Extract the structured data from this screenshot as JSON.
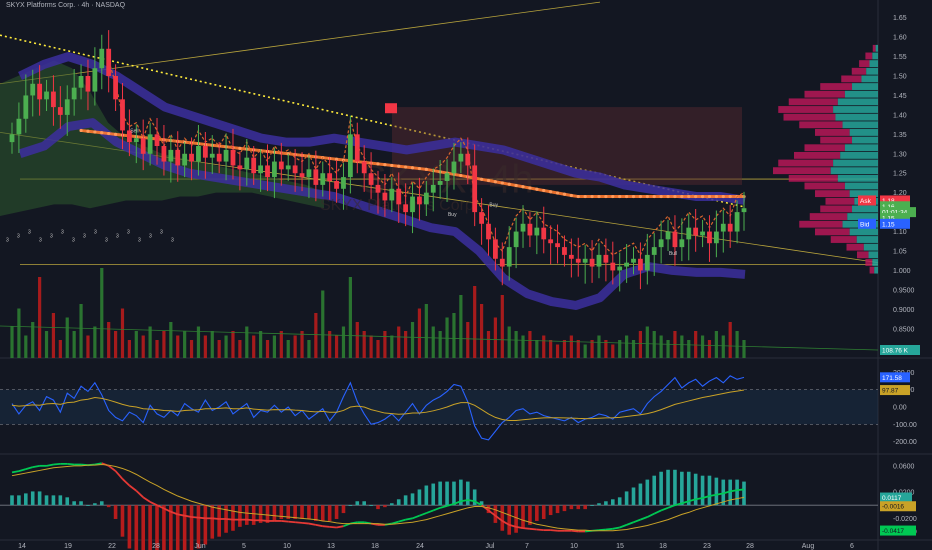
{
  "header": {
    "title": "SKYX Platforms Corp. · 4h · NASDAQ"
  },
  "watermark": {
    "ticker": "SKYX, 4h",
    "name": "SKYX Platforms Corp."
  },
  "colors": {
    "bg": "#131722",
    "up": "#26a69a",
    "up_candle": "#4caf50",
    "down": "#f23645",
    "ema_orange": "#ff7a2f",
    "cloud_blue": "#3c2f9e",
    "dotted": "#ffeb3b"
  },
  "markers": [
    "Sell",
    "Buy",
    "Buy",
    "Bull"
  ],
  "chart_data": [
    {
      "type": "candlestick",
      "panel": "price",
      "x_tick_labels": [
        "14",
        "19",
        "22",
        "28",
        "Jun",
        "5",
        "10",
        "13",
        "18",
        "24",
        "Jul",
        "7",
        "10",
        "15",
        "18",
        "23",
        "28",
        "Aug",
        "6"
      ],
      "y_tick_labels": [
        "1.65",
        "1.60",
        "1.55",
        "1.50",
        "1.45",
        "1.40",
        "1.35",
        "1.30",
        "1.25",
        "1.20",
        "1.15",
        "1.10",
        "1.05",
        "1.000",
        "0.9500",
        "0.9000",
        "0.8500",
        "0.8000"
      ],
      "ylim": [
        0.78,
        1.68
      ],
      "close": [
        1.35,
        1.39,
        1.45,
        1.48,
        1.44,
        1.46,
        1.42,
        1.4,
        1.44,
        1.47,
        1.5,
        1.46,
        1.52,
        1.57,
        1.5,
        1.44,
        1.36,
        1.33,
        1.34,
        1.3,
        1.35,
        1.32,
        1.28,
        1.31,
        1.27,
        1.3,
        1.28,
        1.32,
        1.29,
        1.3,
        1.28,
        1.31,
        1.27,
        1.26,
        1.29,
        1.25,
        1.27,
        1.24,
        1.28,
        1.26,
        1.27,
        1.25,
        1.24,
        1.26,
        1.22,
        1.25,
        1.23,
        1.21,
        1.24,
        1.35,
        1.28,
        1.25,
        1.22,
        1.2,
        1.18,
        1.21,
        1.17,
        1.15,
        1.19,
        1.17,
        1.2,
        1.22,
        1.23,
        1.25,
        1.28,
        1.3,
        1.27,
        1.15,
        1.12,
        1.08,
        1.03,
        1.01,
        1.06,
        1.1,
        1.12,
        1.09,
        1.11,
        1.08,
        1.07,
        1.06,
        1.04,
        1.03,
        1.02,
        1.03,
        1.01,
        1.04,
        1.02,
        1.0,
        1.01,
        1.02,
        1.03,
        1.0,
        1.04,
        1.06,
        1.08,
        1.1,
        1.06,
        1.08,
        1.11,
        1.09,
        1.1,
        1.07,
        1.1,
        1.12,
        1.1,
        1.15,
        1.16
      ],
      "price_labels": {
        "ask_label": "Ask",
        "ask": "1.18",
        "last": "1.16",
        "countdown": "01:01:34",
        "last2": "1.15",
        "bid_label": "Bid",
        "bid": "1.15"
      },
      "signal_digits": [
        "3",
        "3",
        "3",
        "3",
        "3",
        "3",
        "3",
        "3",
        "3",
        "3",
        "3",
        "3",
        "3",
        "3",
        "3",
        "3"
      ]
    },
    {
      "type": "bar",
      "panel": "volume",
      "volume_label": "108.76 K",
      "values": [
        0.35,
        0.55,
        0.25,
        0.4,
        0.9,
        0.3,
        0.5,
        0.2,
        0.45,
        0.3,
        0.6,
        0.25,
        0.35,
        1.0,
        0.4,
        0.3,
        0.55,
        0.2,
        0.3,
        0.25,
        0.35,
        0.2,
        0.3,
        0.4,
        0.25,
        0.3,
        0.2,
        0.35,
        0.25,
        0.3,
        0.2,
        0.25,
        0.3,
        0.2,
        0.35,
        0.25,
        0.3,
        0.2,
        0.25,
        0.3,
        0.2,
        0.25,
        0.3,
        0.2,
        0.5,
        0.75,
        0.3,
        0.25,
        0.35,
        0.9,
        0.4,
        0.3,
        0.25,
        0.2,
        0.3,
        0.25,
        0.35,
        0.3,
        0.4,
        0.55,
        0.6,
        0.35,
        0.3,
        0.45,
        0.5,
        0.7,
        0.4,
        0.8,
        0.6,
        0.3,
        0.45,
        0.7,
        0.35,
        0.3,
        0.25,
        0.3,
        0.2,
        0.25,
        0.2,
        0.15,
        0.2,
        0.25,
        0.2,
        0.15,
        0.2,
        0.25,
        0.2,
        0.15,
        0.2,
        0.25,
        0.2,
        0.3,
        0.35,
        0.3,
        0.25,
        0.2,
        0.3,
        0.25,
        0.2,
        0.3,
        0.25,
        0.2,
        0.3,
        0.25,
        0.4,
        0.3,
        0.2
      ]
    },
    {
      "type": "line",
      "panel": "cci",
      "y_tick_labels": [
        "200.00",
        "100.00",
        "0.00",
        "-100.00",
        "-200.00"
      ],
      "ylim": [
        -260,
        260
      ],
      "current_label": "171.58",
      "signal_label": "97.87",
      "series": [
        {
          "values": [
            20,
            -40,
            10,
            30,
            -20,
            60,
            40,
            -30,
            80,
            50,
            120,
            90,
            140,
            70,
            -20,
            -60,
            -80,
            -30,
            -50,
            -90,
            10,
            -40,
            -60,
            -20,
            -50,
            20,
            -10,
            -30,
            40,
            -20,
            0,
            30,
            -40,
            -10,
            20,
            -60,
            -20,
            -30,
            10,
            -30,
            0,
            -50,
            -20,
            -70,
            -40,
            -10,
            -80,
            -30,
            60,
            140,
            30,
            -40,
            -100,
            -90,
            -70,
            -40,
            -80,
            -30,
            20,
            -40,
            10,
            40,
            60,
            90,
            130,
            120,
            30,
            -110,
            -180,
            -190,
            -140,
            -90,
            -60,
            -20,
            -10,
            -40,
            -30,
            -50,
            -60,
            -70,
            -80,
            -60,
            -90,
            -70,
            -60,
            -40,
            -50,
            -70,
            -30,
            -20,
            -10,
            -40,
            20,
            60,
            90,
            130,
            170,
            110,
            140,
            160,
            120,
            150,
            170,
            140,
            180,
            160,
            171
          ]
        },
        {
          "values": [
            10,
            5,
            8,
            12,
            10,
            18,
            20,
            15,
            25,
            28,
            40,
            45,
            55,
            50,
            40,
            28,
            15,
            5,
            0,
            -10,
            -12,
            -15,
            -20,
            -22,
            -25,
            -20,
            -18,
            -16,
            -10,
            -10,
            -8,
            -5,
            -10,
            -10,
            -5,
            -12,
            -15,
            -18,
            -15,
            -16,
            -15,
            -18,
            -20,
            -25,
            -28,
            -25,
            -30,
            -30,
            -20,
            0,
            5,
            0,
            -15,
            -25,
            -35,
            -38,
            -42,
            -40,
            -35,
            -35,
            -30,
            -22,
            -12,
            0,
            15,
            25,
            25,
            10,
            -15,
            -40,
            -60,
            -72,
            -78,
            -78,
            -74,
            -70,
            -66,
            -63,
            -62,
            -62,
            -63,
            -64,
            -66,
            -67,
            -67,
            -65,
            -63,
            -62,
            -60,
            -55,
            -50,
            -45,
            -38,
            -28,
            -15,
            0,
            15,
            25,
            35,
            45,
            55,
            62,
            70,
            78,
            86,
            92,
            98
          ]
        }
      ]
    },
    {
      "type": "line",
      "panel": "macd",
      "y_tick_labels": [
        "0.0600",
        "0.0200",
        "0.0000",
        "-0.0200",
        "-0.0400"
      ],
      "ylim": [
        -0.05,
        0.075
      ],
      "labels": {
        "hist": "0.0117",
        "signal": "-0.0016",
        "macd": "-0.0417"
      },
      "series": [
        {
          "values": [
            0.05,
            0.052,
            0.055,
            0.058,
            0.06,
            0.06,
            0.062,
            0.063,
            0.063,
            0.062,
            0.062,
            0.061,
            0.062,
            0.064,
            0.06,
            0.052,
            0.04,
            0.03,
            0.022,
            0.012,
            0.005,
            0.0,
            -0.005,
            -0.01,
            -0.014,
            -0.016,
            -0.018,
            -0.019,
            -0.02,
            -0.02,
            -0.021,
            -0.021,
            -0.022,
            -0.022,
            -0.022,
            -0.023,
            -0.023,
            -0.024,
            -0.024,
            -0.024,
            -0.025,
            -0.026,
            -0.027,
            -0.028,
            -0.03,
            -0.032,
            -0.033,
            -0.034,
            -0.032,
            -0.028,
            -0.026,
            -0.026,
            -0.028,
            -0.03,
            -0.03,
            -0.028,
            -0.025,
            -0.022,
            -0.02,
            -0.016,
            -0.012,
            -0.008,
            -0.004,
            -0.001,
            0.002,
            0.006,
            0.008,
            0.006,
            0.0,
            -0.008,
            -0.016,
            -0.024,
            -0.03,
            -0.033,
            -0.035,
            -0.036,
            -0.037,
            -0.038,
            -0.038,
            -0.039,
            -0.039,
            -0.039,
            -0.04,
            -0.04,
            -0.039,
            -0.038,
            -0.037,
            -0.036,
            -0.034,
            -0.03,
            -0.026,
            -0.022,
            -0.018,
            -0.013,
            -0.008,
            -0.004,
            0.0,
            0.003,
            0.006,
            0.009,
            0.011,
            0.014,
            0.016,
            0.018,
            0.021,
            0.023,
            0.024
          ]
        },
        {
          "values": [
            0.045,
            0.047,
            0.049,
            0.051,
            0.053,
            0.055,
            0.057,
            0.058,
            0.059,
            0.06,
            0.06,
            0.061,
            0.061,
            0.062,
            0.061,
            0.059,
            0.056,
            0.052,
            0.047,
            0.041,
            0.035,
            0.03,
            0.024,
            0.019,
            0.014,
            0.01,
            0.006,
            0.003,
            0.0,
            -0.003,
            -0.005,
            -0.007,
            -0.009,
            -0.011,
            -0.012,
            -0.013,
            -0.014,
            -0.015,
            -0.016,
            -0.017,
            -0.018,
            -0.019,
            -0.02,
            -0.021,
            -0.022,
            -0.024,
            -0.025,
            -0.027,
            -0.028,
            -0.028,
            -0.028,
            -0.028,
            -0.028,
            -0.028,
            -0.029,
            -0.029,
            -0.028,
            -0.027,
            -0.026,
            -0.024,
            -0.022,
            -0.019,
            -0.016,
            -0.013,
            -0.01,
            -0.007,
            -0.004,
            -0.002,
            -0.002,
            -0.004,
            -0.007,
            -0.011,
            -0.015,
            -0.019,
            -0.023,
            -0.026,
            -0.029,
            -0.031,
            -0.033,
            -0.035,
            -0.036,
            -0.037,
            -0.038,
            -0.038,
            -0.039,
            -0.039,
            -0.039,
            -0.039,
            -0.038,
            -0.037,
            -0.035,
            -0.033,
            -0.031,
            -0.028,
            -0.025,
            -0.022,
            -0.018,
            -0.014,
            -0.011,
            -0.007,
            -0.004,
            -0.001,
            0.002,
            0.005,
            0.008,
            0.01,
            0.012
          ]
        }
      ]
    }
  ]
}
